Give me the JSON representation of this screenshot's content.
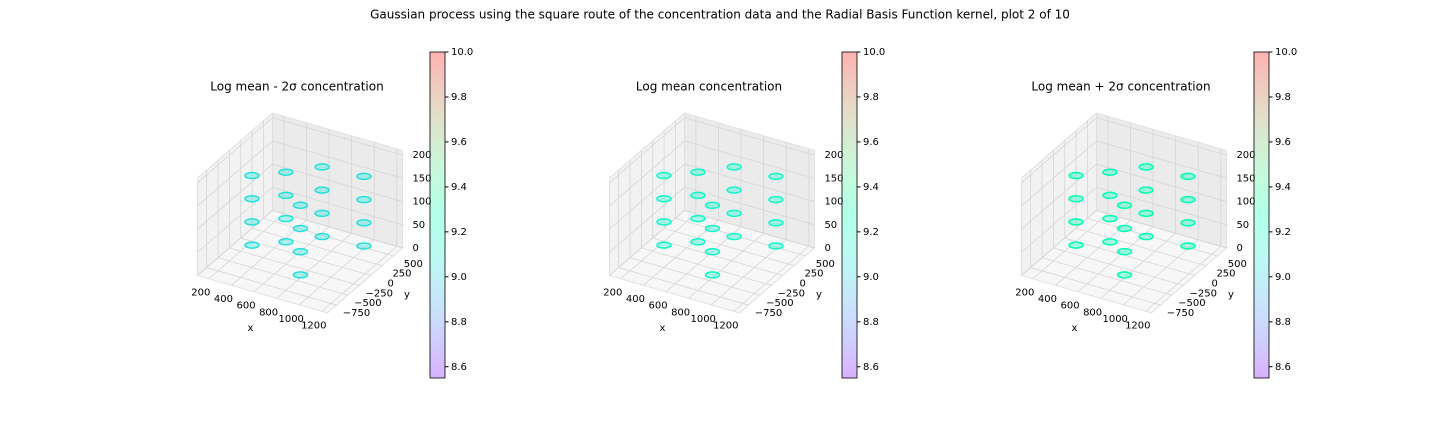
{
  "title": "Gaussian process using the square route of the concentration data and the Radial Basis Function kernel, plot 2 of 10",
  "chart_data": [
    {
      "type": "scatter3d",
      "title": "Log mean - 2σ concentration",
      "xlabel": "x",
      "ylabel": "y",
      "x": [
        300,
        300,
        300,
        300,
        500,
        500,
        500,
        500,
        700,
        700,
        700,
        700,
        850,
        850,
        850,
        850,
        1050,
        1050,
        1050,
        1050
      ],
      "y": [
        -250,
        -250,
        -250,
        -250,
        0,
        0,
        0,
        0,
        300,
        300,
        300,
        300,
        -550,
        -550,
        -550,
        -550,
        350,
        350,
        350,
        350
      ],
      "z": [
        20,
        70,
        120,
        170,
        20,
        70,
        120,
        170,
        20,
        70,
        120,
        170,
        20,
        70,
        120,
        170,
        20,
        70,
        120,
        170
      ],
      "values": [
        9.05,
        9.05,
        9.04,
        9.05,
        9.05,
        9.06,
        9.05,
        9.05,
        9.04,
        9.05,
        9.05,
        9.06,
        9.05,
        9.05,
        9.04,
        9.05,
        9.05,
        9.05,
        9.06,
        9.05
      ],
      "colormap": "rainbow",
      "clim": [
        8.55,
        10
      ],
      "cticks": [
        8.6,
        8.8,
        {
          "value": 9,
          "label": "9.0"
        },
        9.2,
        9.4,
        9.6,
        9.8,
        {
          "value": 10,
          "label": "10.0"
        }
      ],
      "xlim": [
        100,
        1250
      ],
      "ylim": [
        -950,
        700
      ],
      "zlim": [
        0,
        210
      ],
      "xticks": [
        200,
        400,
        600,
        800,
        1000,
        1200
      ],
      "yticks": [
        {
          "value": -750,
          "label": "−750"
        },
        {
          "value": -500,
          "label": "−500"
        },
        {
          "value": -250,
          "label": "−250"
        },
        0,
        250,
        500
      ],
      "zticks": [
        0,
        50,
        100,
        150,
        200
      ]
    },
    {
      "type": "scatter3d",
      "title": "Log mean concentration",
      "xlabel": "x",
      "ylabel": "y",
      "x": [
        300,
        300,
        300,
        300,
        500,
        500,
        500,
        500,
        700,
        700,
        700,
        700,
        850,
        850,
        850,
        850,
        1050,
        1050,
        1050,
        1050
      ],
      "y": [
        -250,
        -250,
        -250,
        -250,
        0,
        0,
        0,
        0,
        300,
        300,
        300,
        300,
        -550,
        -550,
        -550,
        -550,
        350,
        350,
        350,
        350
      ],
      "z": [
        20,
        70,
        120,
        170,
        20,
        70,
        120,
        170,
        20,
        70,
        120,
        170,
        20,
        70,
        120,
        170,
        20,
        70,
        120,
        170
      ],
      "values": [
        9.15,
        9.15,
        9.14,
        9.15,
        9.15,
        9.16,
        9.15,
        9.15,
        9.14,
        9.15,
        9.15,
        9.16,
        9.15,
        9.15,
        9.14,
        9.15,
        9.15,
        9.15,
        9.16,
        9.15
      ],
      "colormap": "rainbow",
      "clim": [
        8.55,
        10
      ],
      "cticks": [
        8.6,
        8.8,
        {
          "value": 9,
          "label": "9.0"
        },
        9.2,
        9.4,
        9.6,
        9.8,
        {
          "value": 10,
          "label": "10.0"
        }
      ],
      "xlim": [
        100,
        1250
      ],
      "ylim": [
        -950,
        700
      ],
      "zlim": [
        0,
        210
      ],
      "xticks": [
        200,
        400,
        600,
        800,
        1000,
        1200
      ],
      "yticks": [
        {
          "value": -750,
          "label": "−750"
        },
        {
          "value": -500,
          "label": "−500"
        },
        {
          "value": -250,
          "label": "−250"
        },
        0,
        250,
        500
      ],
      "zticks": [
        0,
        50,
        100,
        150,
        200
      ]
    },
    {
      "type": "scatter3d",
      "title": "Log mean + 2σ concentration",
      "xlabel": "x",
      "ylabel": "y",
      "x": [
        300,
        300,
        300,
        300,
        500,
        500,
        500,
        500,
        700,
        700,
        700,
        700,
        850,
        850,
        850,
        850,
        1050,
        1050,
        1050,
        1050
      ],
      "y": [
        -250,
        -250,
        -250,
        -250,
        0,
        0,
        0,
        0,
        300,
        300,
        300,
        300,
        -550,
        -550,
        -550,
        -550,
        350,
        350,
        350,
        350
      ],
      "z": [
        20,
        70,
        120,
        170,
        20,
        70,
        120,
        170,
        20,
        70,
        120,
        170,
        20,
        70,
        120,
        170,
        20,
        70,
        120,
        170
      ],
      "values": [
        9.26,
        9.26,
        9.25,
        9.26,
        9.26,
        9.27,
        9.26,
        9.26,
        9.25,
        9.26,
        9.26,
        9.27,
        9.26,
        9.26,
        9.25,
        9.26,
        9.26,
        9.26,
        9.27,
        9.26
      ],
      "colormap": "rainbow",
      "clim": [
        8.55,
        10
      ],
      "cticks": [
        8.6,
        8.8,
        {
          "value": 9,
          "label": "9.0"
        },
        9.2,
        9.4,
        9.6,
        9.8,
        {
          "value": 10,
          "label": "10.0"
        }
      ],
      "xlim": [
        100,
        1250
      ],
      "ylim": [
        -950,
        700
      ],
      "zlim": [
        0,
        210
      ],
      "xticks": [
        200,
        400,
        600,
        800,
        1000,
        1200
      ],
      "yticks": [
        {
          "value": -750,
          "label": "−750"
        },
        {
          "value": -500,
          "label": "−500"
        },
        {
          "value": -250,
          "label": "−250"
        },
        0,
        250,
        500
      ],
      "zticks": [
        0,
        50,
        100,
        150,
        200
      ]
    }
  ]
}
